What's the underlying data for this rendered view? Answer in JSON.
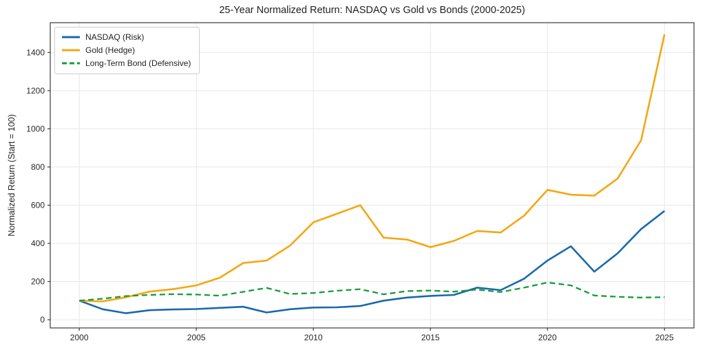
{
  "title": "25-Year Normalized Return: NASDAQ vs Gold vs Bonds (2000-2025)",
  "colors": {
    "background": "#ffffff",
    "grid": "#e7e7e7",
    "spine": "#3a3a3a",
    "tick_text": "#262626",
    "nasdaq_blue": "#1a68ac",
    "gold_orange": "#f3a712",
    "bond_green": "#149c38",
    "legend_border": "#cccccc"
  },
  "chart_data": {
    "type": "line",
    "title": "25-Year Normalized Return: NASDAQ vs Gold vs Bonds (2000-2025)",
    "xlabel": "",
    "ylabel": "Normalized Return (Start = 100)",
    "grid": true,
    "legend_position": "upper-left",
    "x": [
      2000,
      2001,
      2002,
      2003,
      2004,
      2005,
      2006,
      2007,
      2008,
      2009,
      2010,
      2011,
      2012,
      2013,
      2014,
      2015,
      2016,
      2017,
      2018,
      2019,
      2020,
      2021,
      2022,
      2023,
      2024,
      2025
    ],
    "xticks": [
      2000,
      2005,
      2010,
      2015,
      2020,
      2025
    ],
    "yticks": [
      0,
      200,
      400,
      600,
      800,
      1000,
      1200,
      1400
    ],
    "xlim": [
      1998.76,
      2026.26
    ],
    "ylim": [
      -43,
      1556
    ],
    "series": [
      {
        "name": "NASDAQ (Risk)",
        "color": "#1a68ac",
        "style": "solid",
        "values": [
          100,
          55,
          34,
          50,
          54,
          56,
          62,
          68,
          38,
          55,
          64,
          65,
          72,
          100,
          116,
          125,
          130,
          168,
          155,
          215,
          310,
          385,
          252,
          348,
          475,
          570
        ]
      },
      {
        "name": "Gold (Hedge)",
        "color": "#f3a712",
        "style": "solid",
        "values": [
          100,
          96,
          118,
          147,
          160,
          180,
          220,
          297,
          310,
          388,
          510,
          555,
          600,
          430,
          420,
          380,
          413,
          465,
          457,
          545,
          680,
          655,
          650,
          740,
          940,
          1495
        ]
      },
      {
        "name": "Long-Term Bond (Defensive)",
        "color": "#149c38",
        "style": "dashed",
        "values": [
          100,
          110,
          124,
          130,
          134,
          132,
          126,
          146,
          167,
          135,
          140,
          152,
          160,
          133,
          150,
          153,
          147,
          158,
          145,
          168,
          195,
          180,
          127,
          120,
          116,
          118
        ]
      }
    ]
  }
}
